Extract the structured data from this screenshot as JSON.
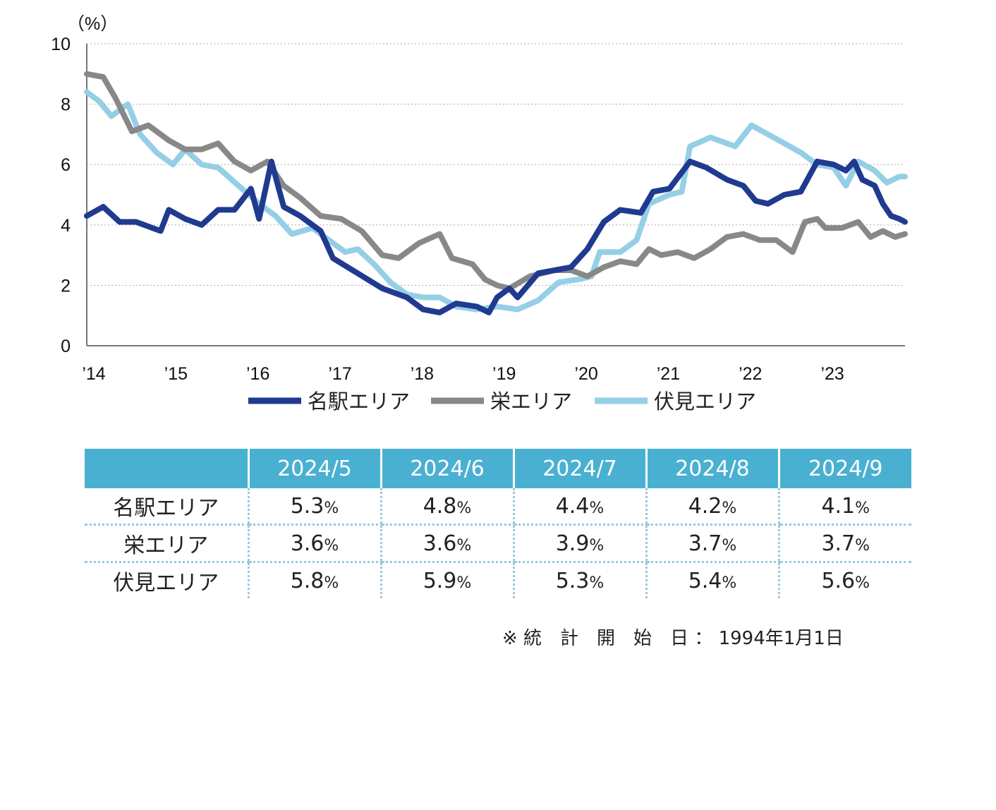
{
  "chart_data": {
    "type": "line",
    "unit_label": "（%）",
    "x_tick_labels": [
      "’14",
      "’15",
      "’16",
      "’17",
      "’18",
      "’19",
      "’20",
      "’21",
      "’22",
      "’23"
    ],
    "ylim": [
      0,
      10
    ],
    "y_ticks": [
      "0",
      "2",
      "4",
      "6",
      "8",
      "10"
    ],
    "grid": "horizontal dotted",
    "legend_position": "bottom",
    "series": [
      {
        "name": "名駅エリア",
        "color": "#1f3a8f",
        "points": [
          [
            2014.0,
            4.3
          ],
          [
            2014.2,
            4.6
          ],
          [
            2014.4,
            4.1
          ],
          [
            2014.6,
            4.1
          ],
          [
            2014.9,
            3.8
          ],
          [
            2015.0,
            4.5
          ],
          [
            2015.2,
            4.2
          ],
          [
            2015.4,
            4.0
          ],
          [
            2015.6,
            4.5
          ],
          [
            2015.8,
            4.5
          ],
          [
            2016.0,
            5.2
          ],
          [
            2016.1,
            4.2
          ],
          [
            2016.25,
            6.1
          ],
          [
            2016.4,
            4.6
          ],
          [
            2016.6,
            4.3
          ],
          [
            2016.85,
            3.8
          ],
          [
            2017.0,
            2.9
          ],
          [
            2017.3,
            2.4
          ],
          [
            2017.6,
            1.9
          ],
          [
            2017.9,
            1.6
          ],
          [
            2018.1,
            1.2
          ],
          [
            2018.3,
            1.1
          ],
          [
            2018.5,
            1.4
          ],
          [
            2018.75,
            1.3
          ],
          [
            2018.9,
            1.1
          ],
          [
            2019.0,
            1.6
          ],
          [
            2019.15,
            1.9
          ],
          [
            2019.25,
            1.6
          ],
          [
            2019.5,
            2.4
          ],
          [
            2019.9,
            2.6
          ],
          [
            2020.1,
            3.2
          ],
          [
            2020.3,
            4.1
          ],
          [
            2020.5,
            4.5
          ],
          [
            2020.75,
            4.4
          ],
          [
            2020.9,
            5.1
          ],
          [
            2021.1,
            5.2
          ],
          [
            2021.35,
            6.1
          ],
          [
            2021.55,
            5.9
          ],
          [
            2021.8,
            5.5
          ],
          [
            2022.0,
            5.3
          ],
          [
            2022.15,
            4.8
          ],
          [
            2022.3,
            4.7
          ],
          [
            2022.5,
            5.0
          ],
          [
            2022.7,
            5.1
          ],
          [
            2022.9,
            6.1
          ],
          [
            2023.1,
            6.0
          ],
          [
            2023.25,
            5.8
          ],
          [
            2023.35,
            6.1
          ],
          [
            2023.45,
            5.5
          ],
          [
            2023.6,
            5.3
          ],
          [
            2023.7,
            4.7
          ],
          [
            2023.8,
            4.3
          ],
          [
            2023.9,
            4.2
          ],
          [
            2023.97,
            4.1
          ]
        ]
      },
      {
        "name": "栄エリア",
        "color": "#888888",
        "points": [
          [
            2014.0,
            9.0
          ],
          [
            2014.2,
            8.9
          ],
          [
            2014.35,
            8.2
          ],
          [
            2014.55,
            7.1
          ],
          [
            2014.75,
            7.3
          ],
          [
            2015.0,
            6.8
          ],
          [
            2015.2,
            6.5
          ],
          [
            2015.4,
            6.5
          ],
          [
            2015.6,
            6.7
          ],
          [
            2015.8,
            6.1
          ],
          [
            2016.0,
            5.8
          ],
          [
            2016.2,
            6.1
          ],
          [
            2016.4,
            5.3
          ],
          [
            2016.6,
            4.9
          ],
          [
            2016.85,
            4.3
          ],
          [
            2017.1,
            4.2
          ],
          [
            2017.35,
            3.8
          ],
          [
            2017.6,
            3.0
          ],
          [
            2017.8,
            2.9
          ],
          [
            2018.05,
            3.4
          ],
          [
            2018.3,
            3.7
          ],
          [
            2018.45,
            2.9
          ],
          [
            2018.7,
            2.7
          ],
          [
            2018.85,
            2.2
          ],
          [
            2019.0,
            2.0
          ],
          [
            2019.15,
            1.9
          ],
          [
            2019.4,
            2.3
          ],
          [
            2019.7,
            2.5
          ],
          [
            2019.9,
            2.5
          ],
          [
            2020.1,
            2.3
          ],
          [
            2020.3,
            2.6
          ],
          [
            2020.5,
            2.8
          ],
          [
            2020.7,
            2.7
          ],
          [
            2020.85,
            3.2
          ],
          [
            2021.0,
            3.0
          ],
          [
            2021.2,
            3.1
          ],
          [
            2021.4,
            2.9
          ],
          [
            2021.6,
            3.2
          ],
          [
            2021.8,
            3.6
          ],
          [
            2022.0,
            3.7
          ],
          [
            2022.2,
            3.5
          ],
          [
            2022.4,
            3.5
          ],
          [
            2022.6,
            3.1
          ],
          [
            2022.75,
            4.1
          ],
          [
            2022.9,
            4.2
          ],
          [
            2023.0,
            3.9
          ],
          [
            2023.2,
            3.9
          ],
          [
            2023.4,
            4.1
          ],
          [
            2023.55,
            3.6
          ],
          [
            2023.7,
            3.8
          ],
          [
            2023.85,
            3.6
          ],
          [
            2023.97,
            3.7
          ]
        ]
      },
      {
        "name": "伏見エリア",
        "color": "#95cfe6",
        "points": [
          [
            2014.0,
            8.4
          ],
          [
            2014.15,
            8.1
          ],
          [
            2014.3,
            7.6
          ],
          [
            2014.5,
            8.0
          ],
          [
            2014.65,
            7.0
          ],
          [
            2014.85,
            6.4
          ],
          [
            2015.05,
            6.0
          ],
          [
            2015.2,
            6.5
          ],
          [
            2015.4,
            6.0
          ],
          [
            2015.6,
            5.9
          ],
          [
            2015.85,
            5.3
          ],
          [
            2016.1,
            4.7
          ],
          [
            2016.3,
            4.3
          ],
          [
            2016.5,
            3.7
          ],
          [
            2016.75,
            3.9
          ],
          [
            2016.95,
            3.5
          ],
          [
            2017.15,
            3.1
          ],
          [
            2017.3,
            3.2
          ],
          [
            2017.5,
            2.7
          ],
          [
            2017.7,
            2.1
          ],
          [
            2017.9,
            1.7
          ],
          [
            2018.1,
            1.6
          ],
          [
            2018.3,
            1.6
          ],
          [
            2018.5,
            1.3
          ],
          [
            2018.75,
            1.2
          ],
          [
            2019.0,
            1.3
          ],
          [
            2019.25,
            1.2
          ],
          [
            2019.5,
            1.5
          ],
          [
            2019.75,
            2.1
          ],
          [
            2020.0,
            2.2
          ],
          [
            2020.15,
            2.3
          ],
          [
            2020.25,
            3.1
          ],
          [
            2020.5,
            3.1
          ],
          [
            2020.7,
            3.5
          ],
          [
            2020.85,
            4.7
          ],
          [
            2021.1,
            5.0
          ],
          [
            2021.25,
            5.1
          ],
          [
            2021.35,
            6.6
          ],
          [
            2021.6,
            6.9
          ],
          [
            2021.9,
            6.6
          ],
          [
            2022.1,
            7.3
          ],
          [
            2022.3,
            7.0
          ],
          [
            2022.5,
            6.7
          ],
          [
            2022.7,
            6.4
          ],
          [
            2022.9,
            6.0
          ],
          [
            2023.1,
            5.9
          ],
          [
            2023.25,
            5.3
          ],
          [
            2023.4,
            6.1
          ],
          [
            2023.6,
            5.8
          ],
          [
            2023.75,
            5.4
          ],
          [
            2023.9,
            5.6
          ],
          [
            2023.97,
            5.6
          ]
        ]
      }
    ]
  },
  "table": {
    "headers": [
      "",
      "2024/5",
      "2024/6",
      "2024/7",
      "2024/8",
      "2024/9"
    ],
    "unit": "%",
    "rows": [
      {
        "name": "名駅エリア",
        "values": [
          "5.3",
          "4.8",
          "4.4",
          "4.2",
          "4.1"
        ]
      },
      {
        "name": "栄エリア",
        "values": [
          "3.6",
          "3.6",
          "3.9",
          "3.7",
          "3.7"
        ]
      },
      {
        "name": "伏見エリア",
        "values": [
          "5.8",
          "5.9",
          "5.3",
          "5.4",
          "5.6"
        ]
      }
    ]
  },
  "note": "※ 統　計　開　始　日 ： 1994年1月1日"
}
